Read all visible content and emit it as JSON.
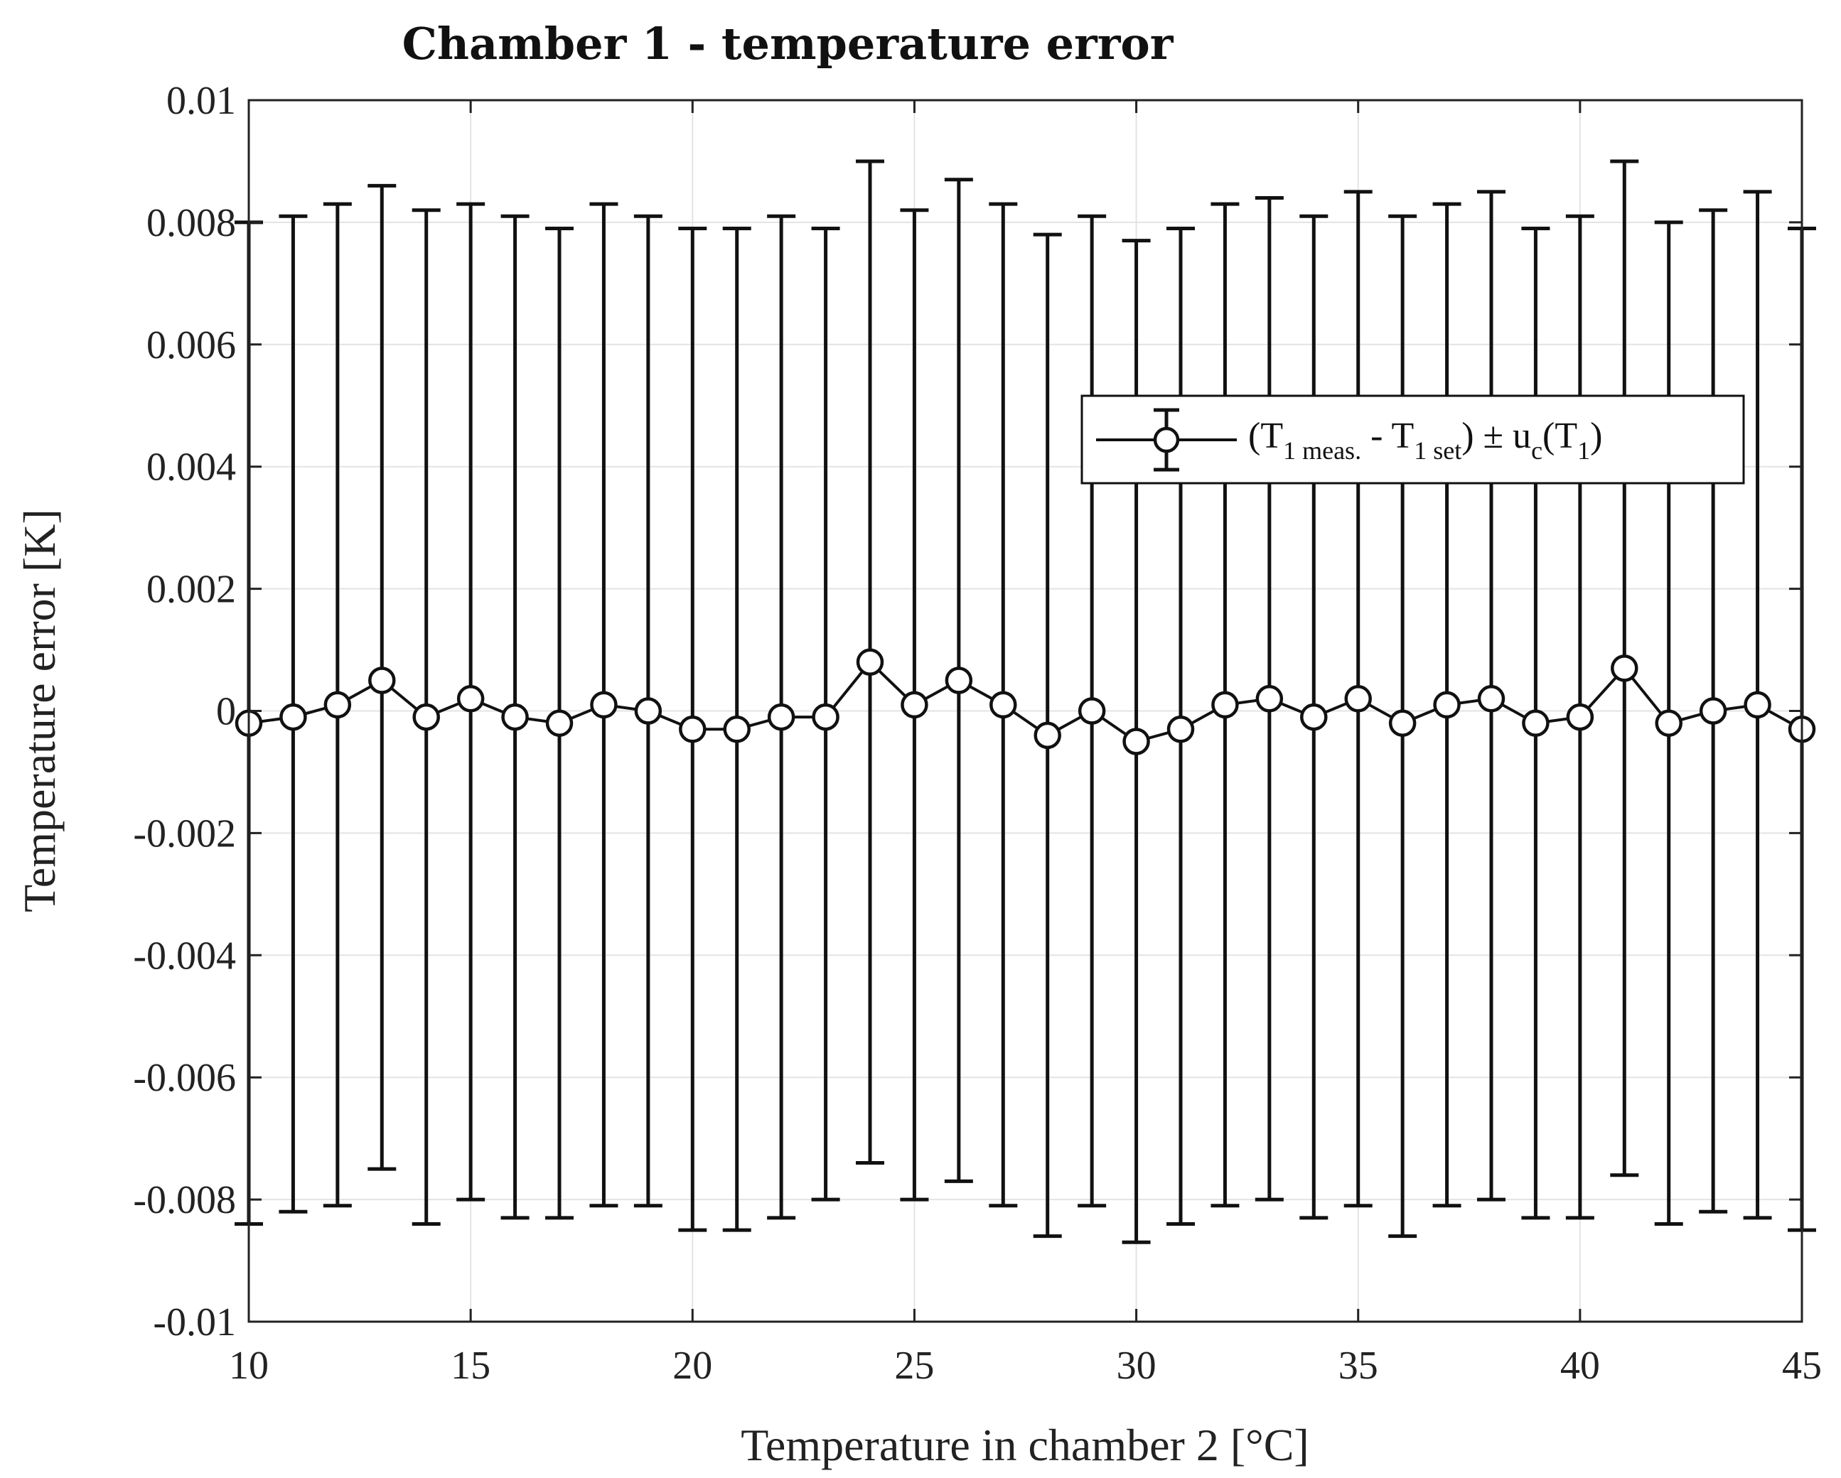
{
  "chart_data": {
    "type": "line",
    "title": "Chamber 1 - temperature error",
    "xlabel": "Temperature in chamber 2 [°C]",
    "ylabel": "Temperature error [K]",
    "xlim": [
      10,
      45
    ],
    "ylim": [
      -0.01,
      0.01
    ],
    "x_ticks": [
      "10",
      "15",
      "20",
      "25",
      "30",
      "35",
      "40",
      "45"
    ],
    "x_tick_values": [
      10,
      15,
      20,
      25,
      30,
      35,
      40,
      45
    ],
    "y_ticks": [
      "0.01",
      "0.008",
      "0.006",
      "0.004",
      "0.002",
      "0",
      "-0.002",
      "-0.004",
      "-0.006",
      "-0.008",
      "-0.01"
    ],
    "y_tick_values": [
      0.01,
      0.008,
      0.006,
      0.004,
      0.002,
      0,
      -0.002,
      -0.004,
      -0.006,
      -0.008,
      -0.01
    ],
    "grid": true,
    "legend_position": "top-right",
    "series": [
      {
        "name": "(T1 meas. - T1 set) ± uc(T1)",
        "legend": {
          "open": "(T",
          "sub1": "1 meas.",
          "mid": " - T",
          "sub2": "1 set",
          "pm": ") ± u",
          "sub3": "c",
          "paren": "(T",
          "sub4": "1",
          "close": ")"
        },
        "marker": "circle",
        "color": "#111111",
        "x": [
          10,
          11,
          12,
          13,
          14,
          15,
          16,
          17,
          18,
          19,
          20,
          21,
          22,
          23,
          24,
          25,
          26,
          27,
          28,
          29,
          30,
          31,
          32,
          33,
          34,
          35,
          36,
          37,
          38,
          39,
          40,
          41,
          42,
          43,
          44,
          45
        ],
        "y": [
          -0.0002,
          -0.0001,
          0.0001,
          0.0005,
          -0.0001,
          0.0002,
          -0.0001,
          -0.0002,
          0.0001,
          0.0,
          -0.0003,
          -0.0003,
          -0.0001,
          -0.0001,
          0.0008,
          0.0001,
          0.0005,
          0.0001,
          -0.0004,
          0.0,
          -0.0005,
          -0.0003,
          0.0001,
          0.0002,
          -0.0001,
          0.0002,
          -0.0002,
          0.0001,
          0.0002,
          -0.0002,
          -0.0001,
          0.0007,
          -0.0002,
          0.0,
          0.0001,
          -0.0003
        ],
        "upper": [
          0.008,
          0.0081,
          0.0083,
          0.0086,
          0.0082,
          0.0083,
          0.0081,
          0.0079,
          0.0083,
          0.0081,
          0.0079,
          0.0079,
          0.0081,
          0.0079,
          0.009,
          0.0082,
          0.0087,
          0.0083,
          0.0078,
          0.0081,
          0.0077,
          0.0079,
          0.0083,
          0.0084,
          0.0081,
          0.0085,
          0.0081,
          0.0083,
          0.0085,
          0.0079,
          0.0081,
          0.009,
          0.008,
          0.0082,
          0.0085,
          0.0079
        ],
        "lower": [
          -0.0084,
          -0.0082,
          -0.0081,
          -0.0075,
          -0.0084,
          -0.008,
          -0.0083,
          -0.0083,
          -0.0081,
          -0.0081,
          -0.0085,
          -0.0085,
          -0.0083,
          -0.008,
          -0.0074,
          -0.008,
          -0.0077,
          -0.0081,
          -0.0086,
          -0.0081,
          -0.0087,
          -0.0084,
          -0.0081,
          -0.008,
          -0.0083,
          -0.0081,
          -0.0086,
          -0.0081,
          -0.008,
          -0.0083,
          -0.0083,
          -0.0076,
          -0.0084,
          -0.0082,
          -0.0083,
          -0.0085
        ]
      }
    ]
  }
}
